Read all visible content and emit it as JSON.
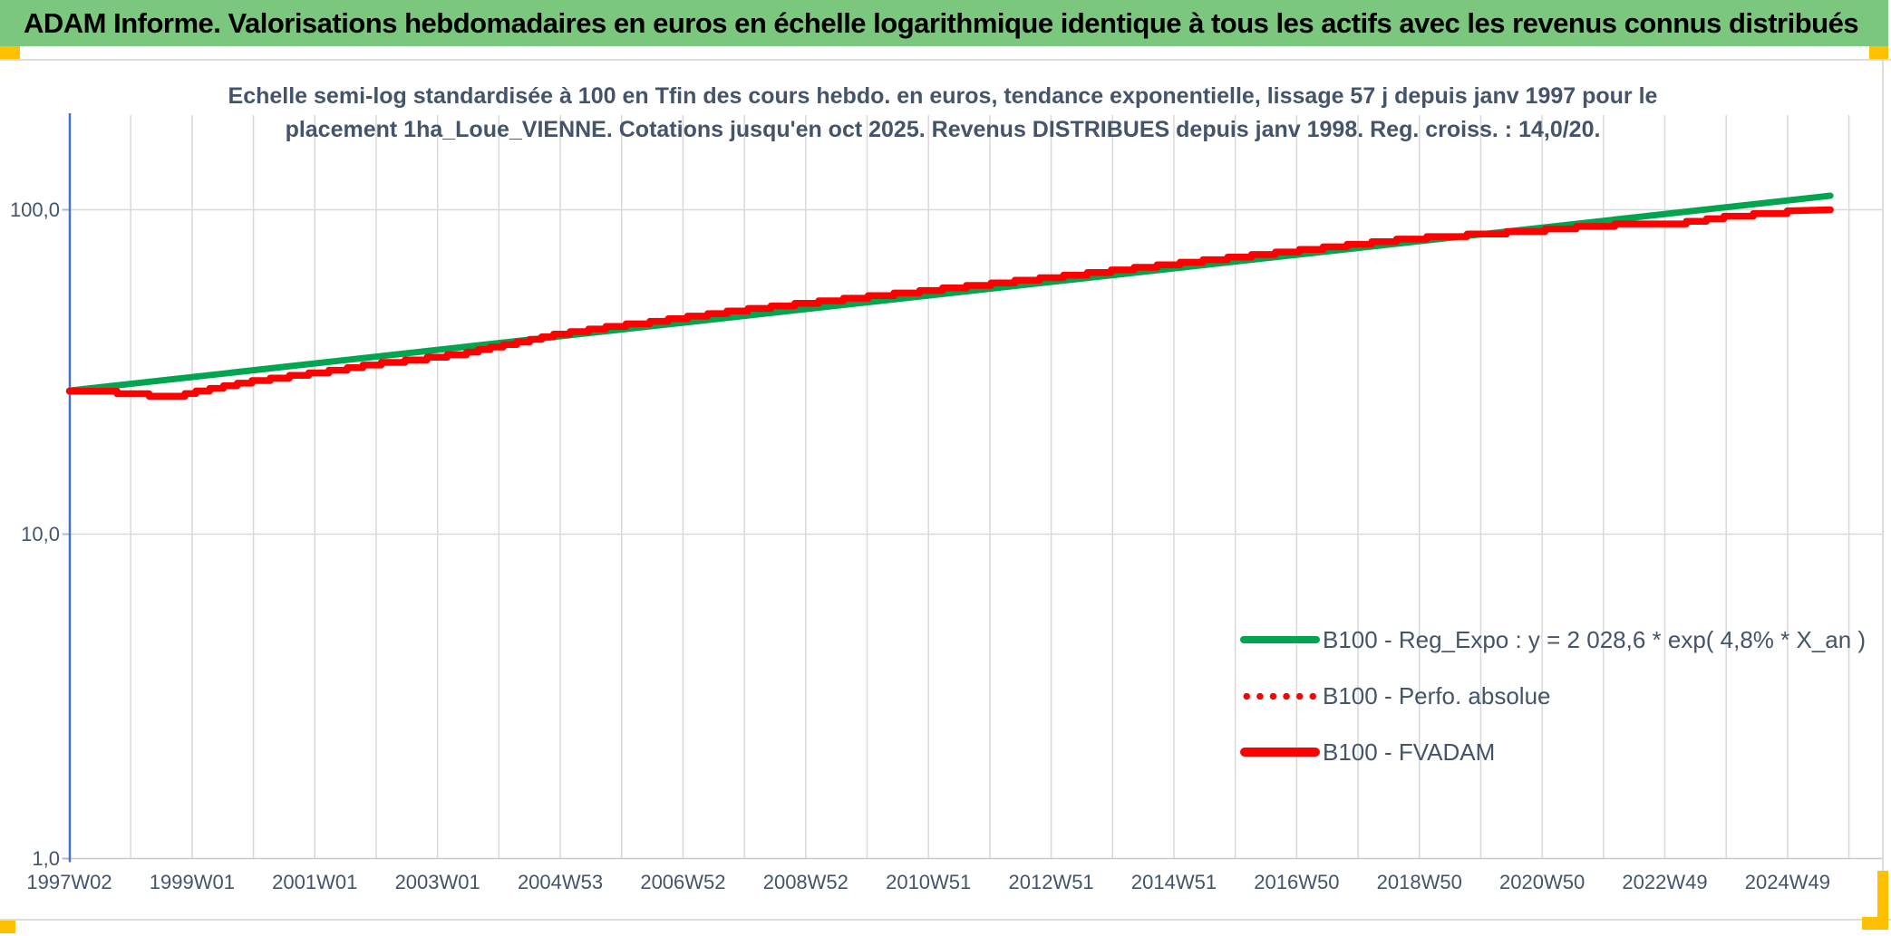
{
  "window": {
    "header_title": "ADAM Informe. Valorisations hebdomadaires en euros en échelle logarithmique identique à tous les actifs avec les revenus connus distribués"
  },
  "colors": {
    "header_bg": "#7CC77E",
    "marker_yellow": "#FFC000",
    "text_dark": "#44546A",
    "grid": "#D9D9D9",
    "axis_blue": "#4472C4",
    "green_line": "#00A550",
    "red_line": "#FF0000"
  },
  "chart_data": {
    "type": "line",
    "scale": "semi-log",
    "title_lines": [
      "Echelle semi-log standardisée à 100 en Tfin des cours hebdo. en euros, tendance exponentielle, lissage 57 j depuis janv 1997 pour le",
      "placement 1ha_Loue_VIENNE. Cotations jusqu'en oct 2025. Revenus DISTRIBUES depuis janv 1998. Reg. croiss. : 14,0/20."
    ],
    "legend_position": "inside-right-bottom",
    "grid": "on",
    "y_axis": {
      "scale": "log10",
      "tick_labels": [
        "100,0",
        "10,0",
        "1,0"
      ],
      "tick_values": [
        100,
        10,
        1
      ],
      "range": [
        1,
        198
      ]
    },
    "x_axis": {
      "tick_labels": [
        "1997W02",
        "1999W01",
        "2001W01",
        "2003W01",
        "2004W53",
        "2006W52",
        "2008W52",
        "2010W51",
        "2012W51",
        "2014W51",
        "2016W50",
        "2018W50",
        "2020W50",
        "2022W49",
        "2024W49"
      ],
      "range_years": [
        1997.04,
        2025.84
      ],
      "gridline_interval_years": 1,
      "label_interval_years": 2
    },
    "series": [
      {
        "name": "B100 - Reg_Expo : y = 2 028,6 * exp( 4,8% * X_an )",
        "color": "#00A550",
        "style": "solid",
        "render": "straight",
        "points": [
          [
            1997.04,
            27.7
          ],
          [
            2025.84,
            110.5
          ]
        ]
      },
      {
        "name": "B100 - Perfo. absolue",
        "color": "#FF0000",
        "style": "dotted",
        "render": "steps",
        "note": "coincides with B100 - FVADAM (revenues distributed)",
        "points": [
          [
            1997.04,
            27.6
          ],
          [
            1997.3,
            27.4
          ],
          [
            1997.6,
            27.4
          ],
          [
            1997.9,
            27.0
          ],
          [
            1998.1,
            27.2
          ],
          [
            1998.35,
            26.6
          ],
          [
            1998.6,
            26.4
          ],
          [
            1998.85,
            26.9
          ],
          [
            1999.1,
            27.6
          ],
          [
            1999.4,
            28.3
          ],
          [
            1999.7,
            29.0
          ],
          [
            2000.0,
            29.7
          ],
          [
            2000.5,
            30.6
          ],
          [
            2001.0,
            31.5
          ],
          [
            2001.5,
            32.4
          ],
          [
            2002.0,
            33.6
          ],
          [
            2002.5,
            34.4
          ],
          [
            2003.0,
            35.3
          ],
          [
            2003.5,
            36.3
          ],
          [
            2004.0,
            38.0
          ],
          [
            2004.5,
            39.6
          ],
          [
            2005.0,
            41.5
          ],
          [
            2005.5,
            42.8
          ],
          [
            2006.0,
            44.2
          ],
          [
            2006.5,
            45.2
          ],
          [
            2007.0,
            46.6
          ],
          [
            2007.5,
            47.9
          ],
          [
            2008.0,
            49.3
          ],
          [
            2008.5,
            50.5
          ],
          [
            2009.0,
            51.7
          ],
          [
            2009.5,
            52.9
          ],
          [
            2010.0,
            54.1
          ],
          [
            2010.5,
            55.3
          ],
          [
            2011.0,
            56.5
          ],
          [
            2011.5,
            57.9
          ],
          [
            2012.0,
            59.2
          ],
          [
            2012.5,
            60.6
          ],
          [
            2013.0,
            62.0
          ],
          [
            2013.5,
            63.5
          ],
          [
            2014.0,
            65.0
          ],
          [
            2014.5,
            66.6
          ],
          [
            2015.0,
            68.2
          ],
          [
            2015.5,
            69.9
          ],
          [
            2016.0,
            71.5
          ],
          [
            2016.5,
            73.2
          ],
          [
            2017.0,
            74.9
          ],
          [
            2017.5,
            76.7
          ],
          [
            2018.0,
            78.5
          ],
          [
            2018.5,
            80.3
          ],
          [
            2019.0,
            82.1
          ],
          [
            2019.5,
            83.3
          ],
          [
            2020.0,
            84.4
          ],
          [
            2020.5,
            85.6
          ],
          [
            2021.0,
            86.8
          ],
          [
            2021.5,
            88.2
          ],
          [
            2022.0,
            90.0
          ],
          [
            2022.4,
            90.6
          ],
          [
            2022.8,
            90.9
          ],
          [
            2023.1,
            90.6
          ],
          [
            2023.5,
            92.2
          ],
          [
            2023.9,
            94.3
          ],
          [
            2024.2,
            96.2
          ],
          [
            2024.5,
            97.2
          ],
          [
            2024.9,
            97.7
          ],
          [
            2025.05,
            97.9
          ],
          [
            2025.15,
            99.4
          ],
          [
            2025.5,
            99.7
          ],
          [
            2025.84,
            100.0
          ]
        ]
      },
      {
        "name": "B100 - FVADAM",
        "color": "#FF0000",
        "style": "solid",
        "render": "steps",
        "points": [
          [
            1997.04,
            27.6
          ],
          [
            1997.3,
            27.4
          ],
          [
            1997.6,
            27.4
          ],
          [
            1997.9,
            27.0
          ],
          [
            1998.1,
            27.2
          ],
          [
            1998.35,
            26.6
          ],
          [
            1998.6,
            26.4
          ],
          [
            1998.85,
            26.9
          ],
          [
            1999.1,
            27.6
          ],
          [
            1999.4,
            28.3
          ],
          [
            1999.7,
            29.0
          ],
          [
            2000.0,
            29.7
          ],
          [
            2000.5,
            30.6
          ],
          [
            2001.0,
            31.5
          ],
          [
            2001.5,
            32.4
          ],
          [
            2002.0,
            33.6
          ],
          [
            2002.5,
            34.4
          ],
          [
            2003.0,
            35.3
          ],
          [
            2003.5,
            36.3
          ],
          [
            2004.0,
            38.0
          ],
          [
            2004.5,
            39.6
          ],
          [
            2005.0,
            41.5
          ],
          [
            2005.5,
            42.8
          ],
          [
            2006.0,
            44.2
          ],
          [
            2006.5,
            45.2
          ],
          [
            2007.0,
            46.6
          ],
          [
            2007.5,
            47.9
          ],
          [
            2008.0,
            49.3
          ],
          [
            2008.5,
            50.5
          ],
          [
            2009.0,
            51.7
          ],
          [
            2009.5,
            52.9
          ],
          [
            2010.0,
            54.1
          ],
          [
            2010.5,
            55.3
          ],
          [
            2011.0,
            56.5
          ],
          [
            2011.5,
            57.9
          ],
          [
            2012.0,
            59.2
          ],
          [
            2012.5,
            60.6
          ],
          [
            2013.0,
            62.0
          ],
          [
            2013.5,
            63.5
          ],
          [
            2014.0,
            65.0
          ],
          [
            2014.5,
            66.6
          ],
          [
            2015.0,
            68.2
          ],
          [
            2015.5,
            69.9
          ],
          [
            2016.0,
            71.5
          ],
          [
            2016.5,
            73.2
          ],
          [
            2017.0,
            74.9
          ],
          [
            2017.5,
            76.7
          ],
          [
            2018.0,
            78.5
          ],
          [
            2018.5,
            80.3
          ],
          [
            2019.0,
            82.1
          ],
          [
            2019.5,
            83.3
          ],
          [
            2020.0,
            84.4
          ],
          [
            2020.5,
            85.6
          ],
          [
            2021.0,
            86.8
          ],
          [
            2021.5,
            88.2
          ],
          [
            2022.0,
            90.0
          ],
          [
            2022.4,
            90.6
          ],
          [
            2022.8,
            90.9
          ],
          [
            2023.1,
            90.6
          ],
          [
            2023.5,
            92.2
          ],
          [
            2023.9,
            94.3
          ],
          [
            2024.2,
            96.2
          ],
          [
            2024.5,
            97.2
          ],
          [
            2024.9,
            97.7
          ],
          [
            2025.05,
            97.9
          ],
          [
            2025.15,
            99.4
          ],
          [
            2025.5,
            99.7
          ],
          [
            2025.84,
            100.0
          ]
        ]
      }
    ]
  }
}
